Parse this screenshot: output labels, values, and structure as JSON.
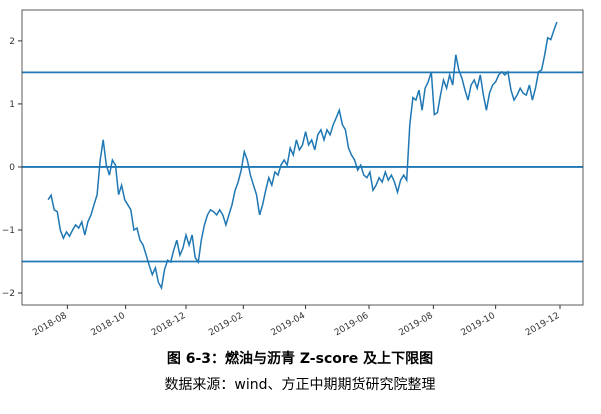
{
  "chart_data": {
    "type": "line",
    "caption": "图 6-3：燃油与沥青 Z-score 及上下限图",
    "source": "数据来源：wind、方正中期期货研究院整理",
    "color": "#1f77b4",
    "values": [
      -0.52,
      -0.45,
      -0.68,
      -0.71,
      -1.0,
      -1.13,
      -1.03,
      -1.1,
      -1.0,
      -0.92,
      -0.97,
      -0.87,
      -1.08,
      -0.87,
      -0.76,
      -0.6,
      -0.44,
      0.11,
      0.43,
      0.03,
      -0.13,
      0.11,
      0.03,
      -0.44,
      -0.29,
      -0.52,
      -0.6,
      -0.68,
      -1.0,
      -0.97,
      -1.16,
      -1.24,
      -1.4,
      -1.56,
      -1.71,
      -1.6,
      -1.83,
      -1.92,
      -1.63,
      -1.48,
      -1.51,
      -1.32,
      -1.16,
      -1.4,
      -1.29,
      -1.08,
      -1.24,
      -1.08,
      -1.44,
      -1.51,
      -1.16,
      -0.92,
      -0.76,
      -0.68,
      -0.71,
      -0.76,
      -0.68,
      -0.76,
      -0.92,
      -0.76,
      -0.6,
      -0.37,
      -0.24,
      -0.05,
      0.24,
      0.11,
      -0.13,
      -0.29,
      -0.44,
      -0.76,
      -0.6,
      -0.37,
      -0.17,
      -0.29,
      -0.08,
      -0.13,
      0.03,
      0.11,
      0.03,
      0.3,
      0.19,
      0.43,
      0.27,
      0.35,
      0.56,
      0.35,
      0.43,
      0.27,
      0.51,
      0.59,
      0.43,
      0.59,
      0.51,
      0.67,
      0.78,
      0.9,
      0.67,
      0.59,
      0.3,
      0.19,
      0.11,
      -0.05,
      0.03,
      -0.13,
      -0.17,
      -0.08,
      -0.37,
      -0.29,
      -0.17,
      -0.24,
      -0.08,
      -0.21,
      -0.13,
      -0.24,
      -0.4,
      -0.21,
      -0.13,
      -0.21,
      0.67,
      1.1,
      1.06,
      1.22,
      0.9,
      1.25,
      1.35,
      1.51,
      0.83,
      0.86,
      1.14,
      1.38,
      1.25,
      1.46,
      1.3,
      1.78,
      1.54,
      1.41,
      1.22,
      1.06,
      1.3,
      1.38,
      1.25,
      1.46,
      1.14,
      0.9,
      1.17,
      1.3,
      1.35,
      1.46,
      1.51,
      1.46,
      1.51,
      1.22,
      1.06,
      1.14,
      1.25,
      1.17,
      1.14,
      1.3,
      1.06,
      1.25,
      1.51,
      1.54,
      1.78,
      2.05,
      2.02,
      2.17,
      2.3
    ],
    "hlines": [
      1.5,
      0,
      -1.5
    ],
    "xlim": [
      -8.5,
      174.5
    ],
    "xticks": [
      {
        "value": 6.3,
        "label": "2018-08"
      },
      {
        "value": 25.3,
        "label": "2018-10"
      },
      {
        "value": 45,
        "label": "2018-12"
      },
      {
        "value": 63.7,
        "label": "2019-02"
      },
      {
        "value": 84,
        "label": "2019-04"
      },
      {
        "value": 104.7,
        "label": "2019-06"
      },
      {
        "value": 125.7,
        "label": "2019-08"
      },
      {
        "value": 146,
        "label": "2019-10"
      },
      {
        "value": 167,
        "label": "2019-12"
      }
    ],
    "ylim": [
      -2.19,
      2.49
    ],
    "yticks": [
      {
        "value": -2,
        "label": "−2"
      },
      {
        "value": -1,
        "label": "−1"
      },
      0,
      1,
      2
    ]
  }
}
